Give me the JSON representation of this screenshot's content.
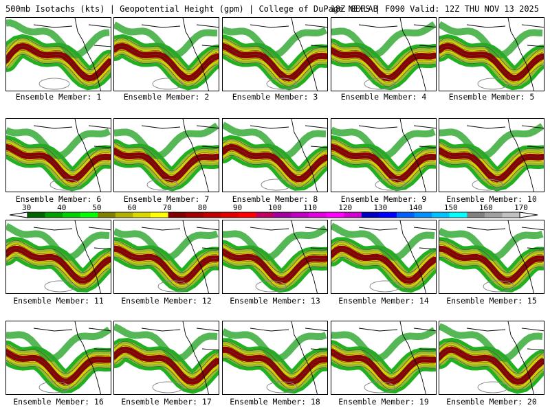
{
  "header": {
    "left": "500mb Isotachs (kts) | Geopotential Height (gpm) | College of DuPage NEXLAB",
    "right": "18Z GEFS | F090 Valid: 12Z THU NOV 13 2025"
  },
  "caption_prefix": "Ensemble Member:",
  "members": [
    {
      "label": "Ensemble Member: 1"
    },
    {
      "label": "Ensemble Member: 2"
    },
    {
      "label": "Ensemble Member: 3"
    },
    {
      "label": "Ensemble Member: 4"
    },
    {
      "label": "Ensemble Member: 5"
    },
    {
      "label": "Ensemble Member: 6"
    },
    {
      "label": "Ensemble Member: 7"
    },
    {
      "label": "Ensemble Member: 8"
    },
    {
      "label": "Ensemble Member: 9"
    },
    {
      "label": "Ensemble Member: 10"
    },
    {
      "label": "Ensemble Member: 11"
    },
    {
      "label": "Ensemble Member: 12"
    },
    {
      "label": "Ensemble Member: 13"
    },
    {
      "label": "Ensemble Member: 14"
    },
    {
      "label": "Ensemble Member: 15"
    },
    {
      "label": "Ensemble Member: 16"
    },
    {
      "label": "Ensemble Member: 17"
    },
    {
      "label": "Ensemble Member: 18"
    },
    {
      "label": "Ensemble Member: 19"
    },
    {
      "label": "Ensemble Member: 20"
    }
  ],
  "colorbar": {
    "unit": "kts",
    "labels": [
      "30",
      "40",
      "50",
      "60",
      "70",
      "80",
      "90",
      "100",
      "110",
      "120",
      "130",
      "140",
      "150",
      "160",
      "170"
    ],
    "colors": [
      "#006400",
      "#00a000",
      "#00d000",
      "#00ff00",
      "#808000",
      "#b0b000",
      "#d8d800",
      "#ffff00",
      "#800000",
      "#a00000",
      "#c00000",
      "#e00000",
      "#ff0000",
      "#c00060",
      "#a000a0",
      "#c000c0",
      "#e000e0",
      "#ff00ff",
      "#d000d0",
      "#0000c0",
      "#0000ff",
      "#0060ff",
      "#0090ff",
      "#00c0ff",
      "#00ffff",
      "#808080",
      "#a0a0a0",
      "#c0c0c0"
    ]
  }
}
